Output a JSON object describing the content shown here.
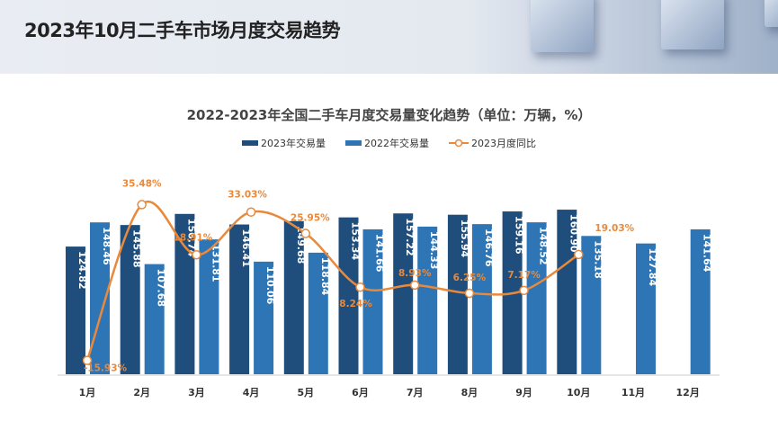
{
  "header": {
    "title": "2023年10月二手车市场月度交易趋势"
  },
  "chart_data": {
    "type": "bar",
    "title": "2022-2023年全国二手车月度交易量变化趋势（单位：万辆，%）",
    "categories": [
      "1月",
      "2月",
      "3月",
      "4月",
      "5月",
      "6月",
      "7月",
      "8月",
      "9月",
      "10月",
      "11月",
      "12月"
    ],
    "series": [
      {
        "name": "2023年交易量",
        "type": "bar",
        "color": "#1f4e7d",
        "values": [
          124.82,
          145.88,
          156.74,
          146.41,
          149.68,
          153.34,
          157.22,
          155.94,
          159.16,
          160.9,
          null,
          null
        ],
        "labels": [
          "124.82",
          "145.88",
          "156.74",
          "146.41",
          "149.68",
          "153.34",
          "157.22",
          "155.94",
          "159.16",
          "160.90",
          "",
          ""
        ]
      },
      {
        "name": "2022年交易量",
        "type": "bar",
        "color": "#2e75b6",
        "values": [
          148.46,
          107.68,
          131.81,
          110.06,
          118.84,
          141.66,
          144.33,
          146.76,
          148.52,
          135.18,
          127.84,
          141.64
        ],
        "labels": [
          "148.46",
          "107.68",
          "131.81",
          "110.06",
          "118.84",
          "141.66",
          "144.33",
          "146.76",
          "148.52",
          "135.18",
          "127.84",
          "141.64"
        ]
      },
      {
        "name": "2023月度同比",
        "type": "line",
        "color": "#e8893b",
        "unit": "%",
        "values": [
          -15.93,
          35.48,
          18.91,
          33.03,
          25.95,
          8.24,
          8.93,
          6.25,
          7.17,
          19.03,
          null,
          null
        ],
        "labels": [
          "-15.93%",
          "35.48%",
          "18.91%",
          "33.03%",
          "25.95%",
          "8.24%",
          "8.93%",
          "6.25%",
          "7.17%",
          "19.03%",
          "",
          ""
        ]
      }
    ],
    "legend": "top",
    "grid": false
  }
}
